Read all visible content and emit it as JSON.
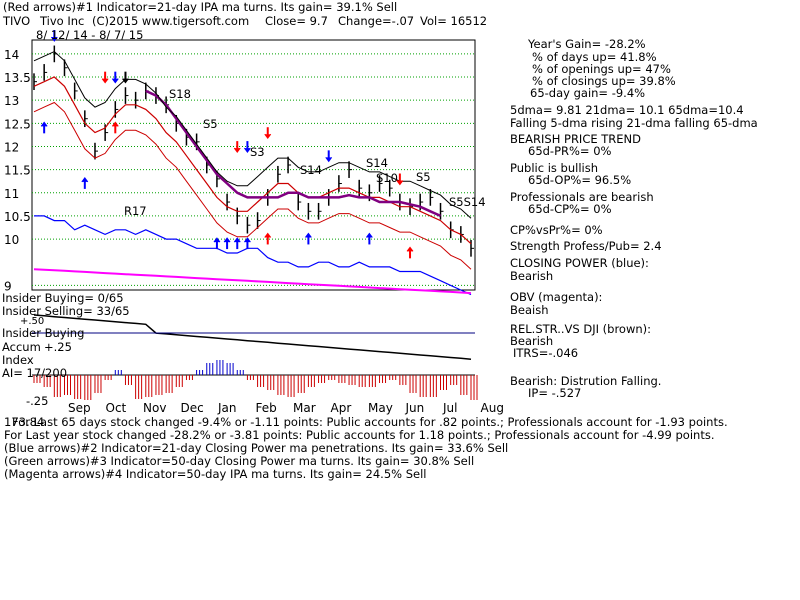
{
  "header": {
    "line1": "(Red arrows)#1 Indicator=21-day IPA ma turns. Its gain= 39.1% Sell",
    "ticker": "TIVO",
    "company": "Tivo Inc",
    "copyright": "(C)2015 www.tigersoft.com",
    "close": "Close=  9.7",
    "change": "Change=-.07",
    "vol": "Vol= 16512",
    "range": "8/ 12/ 14 - 8/ 7/ 15"
  },
  "left_labels": {
    "insider_buying": "Insider Buying= 0/65",
    "insider_selling": "Insider Selling= 33/65",
    "insider_buying2": "Insider Buying",
    "accum_label": "Accum",
    "accum_top": "+.50",
    "accum_mid": "+.25",
    "index_label": "Index",
    "ai": "AI= 17/200",
    "accum_bottom": "-.25"
  },
  "signals": {
    "s18": "S18",
    "s5a": "S5",
    "s3": "S3",
    "s14a": "S14",
    "s14b": "S14",
    "s10": "S10",
    "s5b": "S5",
    "s5s14": "S5S14",
    "r17": "R17"
  },
  "right_panel": {
    "years_gain": "Year's Gain= -28.2%",
    "days_up": "% of days up= 41.8%",
    "openings_up": "% of openings up= 47%",
    "closings_up": "% of closings up= 39.8%",
    "gain65": "65-day gain= -9.4%",
    "dma": "5dma= 9.81 21dma= 10.1 65dma=10.4",
    "dma_desc": "Falling 5-dma rising 21-dma falling 65-dma",
    "trend": "BEARISH PRICE TREND",
    "pr": "65d-PR%= 0%",
    "public": "Public is bullish",
    "op": "65d-OP%= 96.5%",
    "pros": "Professionals are bearish",
    "cp": "65d-CP%= 0%",
    "cpvspr": "CP%vsPr%=  0%",
    "strength": "Strength Profess/Pub= 2.4",
    "closing_power": "CLOSING POWER (blue):",
    "cp_state": "Bearish",
    "obv": "OBV (magenta):",
    "obv_state": "Beaish",
    "relstr": "REL.STR..VS DJI (brown):",
    "relstr_state": "Bearish",
    "itrs": "ITRS=-.046",
    "bearish_dist": "Bearish: Distrution Falling.",
    "ip": "IP= -.527"
  },
  "footer": {
    "line1": "For Last 65 days stock changed -9.4% or -1.11 points:  Public accounts for  .82 points.;  Professionals account for -1.93 points.",
    "line1_prefix": "173.84",
    "line2": "For Last year stock changed -28.2% or -3.81 points:  Public accounts for  1.18 points.;  Professionals account for -4.99 points.",
    "line3": "(Blue arrows)#2 Indicator=21-day Closing Power ma penetrations. Its gain= 33.6% Sell",
    "line4": "(Green arrows)#3 Indicator=50-day Closing Power ma turns. Its gain= 30.8% Sell",
    "line5": "(Magenta arrows)#4 Indicator=50-day IPA ma turns. Its gain= 24.5% Sell"
  },
  "chart_data": {
    "type": "line",
    "title": "TIVO  Tivo Inc",
    "yticks": [
      "14",
      "13.5",
      "13",
      "12.5",
      "12",
      "11.5",
      "11",
      "10.5",
      "10",
      "9"
    ],
    "ytick_values": [
      14,
      13.5,
      13,
      12.5,
      12,
      11.5,
      11,
      10.5,
      10,
      9
    ],
    "ylim": [
      8.9,
      14.3
    ],
    "months": [
      "Sep",
      "Oct",
      "Nov",
      "Dec",
      "Jan",
      "Feb",
      "Mar",
      "Apr",
      "May",
      "Jun",
      "Jul",
      "Aug"
    ],
    "series": [
      {
        "name": "price",
        "color": "#000000",
        "values": [
          13.4,
          13.6,
          14.0,
          13.7,
          13.2,
          12.6,
          11.9,
          12.3,
          12.8,
          13.1,
          13.0,
          13.2,
          13.1,
          12.9,
          12.5,
          12.2,
          12.1,
          11.6,
          11.3,
          10.8,
          10.5,
          10.3,
          10.4,
          10.9,
          11.4,
          11.6,
          10.8,
          10.6,
          10.6,
          10.9,
          11.2,
          11.5,
          11.1,
          11.0,
          11.2,
          11.1,
          10.8,
          10.7,
          10.8,
          10.9,
          10.6,
          10.2,
          10.1,
          9.8
        ]
      },
      {
        "name": "21-dma",
        "color": "#cc0000",
        "values": [
          13.3,
          13.4,
          13.5,
          13.3,
          12.9,
          12.5,
          12.3,
          12.4,
          12.7,
          12.9,
          12.9,
          12.8,
          12.6,
          12.3,
          12.1,
          11.8,
          11.5,
          11.2,
          10.9,
          10.7,
          10.6,
          10.6,
          10.8,
          11.0,
          11.2,
          11.2,
          11.0,
          10.9,
          10.9,
          11.0,
          11.1,
          11.1,
          11.0,
          10.9,
          10.9,
          10.8,
          10.7,
          10.7,
          10.6,
          10.5,
          10.4,
          10.2,
          10.1,
          9.9
        ]
      },
      {
        "name": "65-dma",
        "color": "#800080",
        "values": [
          null,
          null,
          null,
          null,
          null,
          null,
          null,
          null,
          null,
          null,
          null,
          13.2,
          13.1,
          12.9,
          12.6,
          12.3,
          12.0,
          11.7,
          11.4,
          11.2,
          11.0,
          10.9,
          10.9,
          10.9,
          10.9,
          11.0,
          11.0,
          10.9,
          10.9,
          10.9,
          10.9,
          10.95,
          10.9,
          10.9,
          10.8,
          10.8,
          10.8,
          10.75,
          10.7,
          10.6,
          10.5,
          null,
          null,
          null
        ]
      },
      {
        "name": "Closing Power",
        "color": "#0000ff",
        "values": [
          10.5,
          10.5,
          10.4,
          10.4,
          10.2,
          10.3,
          10.2,
          10.1,
          10.2,
          10.2,
          10.1,
          10.2,
          10.1,
          10.0,
          10.0,
          9.9,
          9.8,
          9.8,
          9.8,
          9.7,
          9.7,
          9.8,
          9.8,
          9.6,
          9.5,
          9.5,
          9.4,
          9.4,
          9.5,
          9.5,
          9.4,
          9.4,
          9.5,
          9.4,
          9.4,
          9.4,
          9.3,
          9.3,
          9.3,
          9.2,
          9.1,
          9.0,
          8.9,
          8.8
        ]
      }
    ],
    "accum_index": [
      -0.08,
      -0.12,
      -0.22,
      -0.2,
      -0.24,
      -0.25,
      -0.18,
      -0.05,
      0.05,
      -0.1,
      -0.24,
      -0.22,
      -0.2,
      -0.18,
      -0.12,
      -0.05,
      0.05,
      0.12,
      0.15,
      0.12,
      0.05,
      -0.05,
      -0.12,
      -0.15,
      -0.2,
      -0.22,
      -0.18,
      -0.12,
      -0.08,
      -0.05,
      -0.08,
      -0.1,
      -0.12,
      -0.12,
      -0.08,
      -0.05,
      -0.1,
      -0.18,
      -0.22,
      -0.22,
      -0.15,
      -0.1,
      -0.2,
      -0.25
    ]
  }
}
